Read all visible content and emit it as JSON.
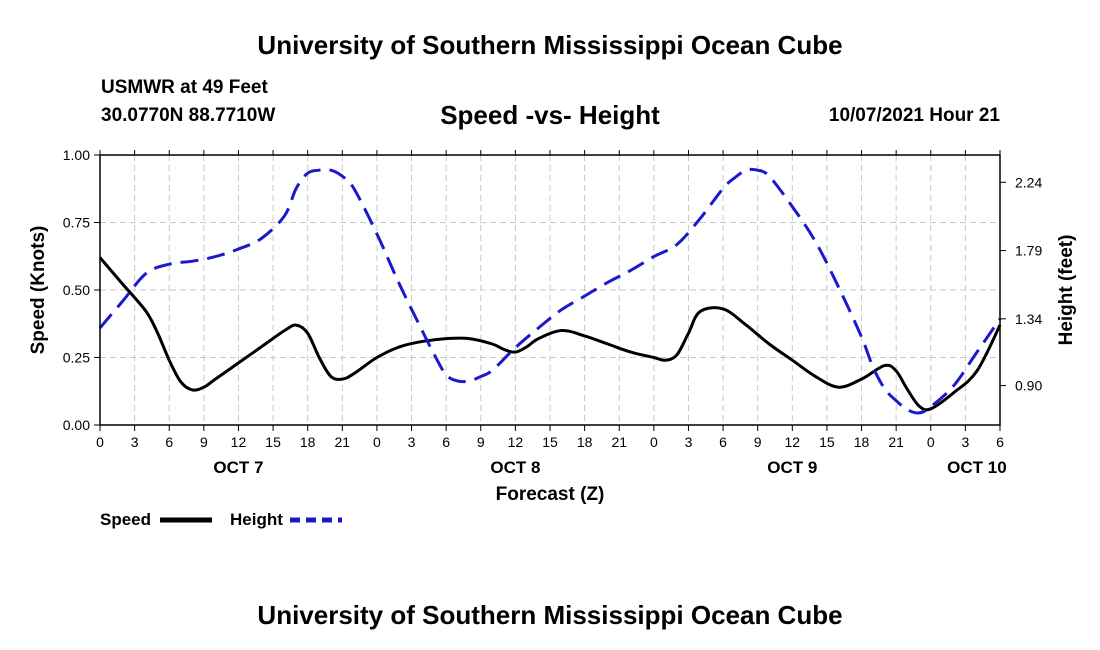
{
  "header": {
    "title": "University of Southern Mississippi Ocean Cube",
    "station": "USMWR at 49 Feet",
    "coords": "30.0770N  88.7710W",
    "chart_title": "Speed -vs- Height",
    "datetime": "10/07/2021 Hour 21"
  },
  "footer": {
    "title": "University of Southern Mississippi Ocean Cube"
  },
  "legend": {
    "speed_label": "Speed",
    "height_label": "Height"
  },
  "colors": {
    "speed": "#000000",
    "height": "#1a1acc",
    "grid": "#c8c8c8"
  },
  "chart_data": {
    "type": "line",
    "title": "Speed -vs- Height",
    "xlabel": "Forecast (Z)",
    "ylabel": "Speed (Knots)",
    "y2label": "Height (feet)",
    "xlim": [
      0,
      78
    ],
    "ylim": [
      0,
      1.0
    ],
    "y2lim": [
      0.64,
      2.42
    ],
    "grid": true,
    "legend_position": "bottom-left",
    "x_ticks": [
      0,
      3,
      6,
      9,
      12,
      15,
      18,
      21,
      24,
      27,
      30,
      33,
      36,
      39,
      42,
      45,
      48,
      51,
      54,
      57,
      60,
      63,
      66,
      69,
      72,
      75,
      78
    ],
    "x_tick_labels": [
      "0",
      "3",
      "6",
      "9",
      "12",
      "15",
      "18",
      "21",
      "0",
      "3",
      "6",
      "9",
      "12",
      "15",
      "18",
      "21",
      "0",
      "3",
      "6",
      "9",
      "12",
      "15",
      "18",
      "21",
      "0",
      "3",
      "6"
    ],
    "day_labels": [
      {
        "x": 12,
        "label": "OCT 7"
      },
      {
        "x": 36,
        "label": "OCT 8"
      },
      {
        "x": 60,
        "label": "OCT 9"
      },
      {
        "x": 76,
        "label": "OCT 10"
      }
    ],
    "y_ticks": [
      0,
      0.25,
      0.5,
      0.75,
      1.0
    ],
    "y_tick_labels": [
      "0.00",
      "0.25",
      "0.50",
      "0.75",
      "1.00"
    ],
    "y2_ticks": [
      0.9,
      1.34,
      1.79,
      2.24
    ],
    "y2_tick_labels": [
      "0.90",
      "1.34",
      "1.79",
      "2.24"
    ],
    "series": [
      {
        "name": "Speed",
        "axis": "left",
        "style": "solid",
        "x": [
          0,
          2,
          4,
          5,
          6,
          7,
          8,
          9,
          10,
          12,
          14,
          16,
          17,
          18,
          19,
          20,
          21,
          22,
          24,
          26,
          28,
          30,
          32,
          34,
          35,
          36,
          37,
          38,
          40,
          42,
          44,
          46,
          48,
          49,
          50,
          51,
          52,
          54,
          56,
          58,
          60,
          62,
          64,
          66,
          68,
          69,
          70,
          71,
          72,
          74,
          76,
          78
        ],
        "values": [
          0.62,
          0.52,
          0.42,
          0.34,
          0.24,
          0.16,
          0.13,
          0.14,
          0.17,
          0.23,
          0.29,
          0.35,
          0.37,
          0.34,
          0.25,
          0.18,
          0.17,
          0.19,
          0.25,
          0.29,
          0.31,
          0.32,
          0.32,
          0.3,
          0.28,
          0.27,
          0.29,
          0.32,
          0.35,
          0.33,
          0.3,
          0.27,
          0.25,
          0.24,
          0.26,
          0.34,
          0.42,
          0.43,
          0.37,
          0.3,
          0.24,
          0.18,
          0.14,
          0.17,
          0.22,
          0.2,
          0.13,
          0.07,
          0.06,
          0.12,
          0.2,
          0.37
        ]
      },
      {
        "name": "Height",
        "axis": "right",
        "style": "dashed",
        "x": [
          0,
          2,
          4,
          6,
          8,
          10,
          12,
          14,
          16,
          17,
          18,
          19,
          20,
          21,
          22,
          24,
          26,
          28,
          29,
          30,
          31,
          32,
          33,
          34,
          36,
          38,
          40,
          42,
          44,
          46,
          48,
          50,
          52,
          54,
          55,
          56,
          57,
          58,
          60,
          62,
          64,
          66,
          67,
          68,
          69,
          70,
          71,
          72,
          74,
          76,
          78
        ],
        "values": [
          1.28,
          1.46,
          1.64,
          1.7,
          1.72,
          1.75,
          1.8,
          1.87,
          2.02,
          2.2,
          2.3,
          2.32,
          2.32,
          2.28,
          2.2,
          1.9,
          1.56,
          1.25,
          1.1,
          0.97,
          0.93,
          0.93,
          0.96,
          1.0,
          1.15,
          1.28,
          1.4,
          1.49,
          1.58,
          1.66,
          1.75,
          1.83,
          2.0,
          2.2,
          2.27,
          2.32,
          2.32,
          2.28,
          2.08,
          1.85,
          1.55,
          1.22,
          1.02,
          0.88,
          0.8,
          0.74,
          0.72,
          0.76,
          0.9,
          1.12,
          1.34
        ]
      }
    ]
  }
}
